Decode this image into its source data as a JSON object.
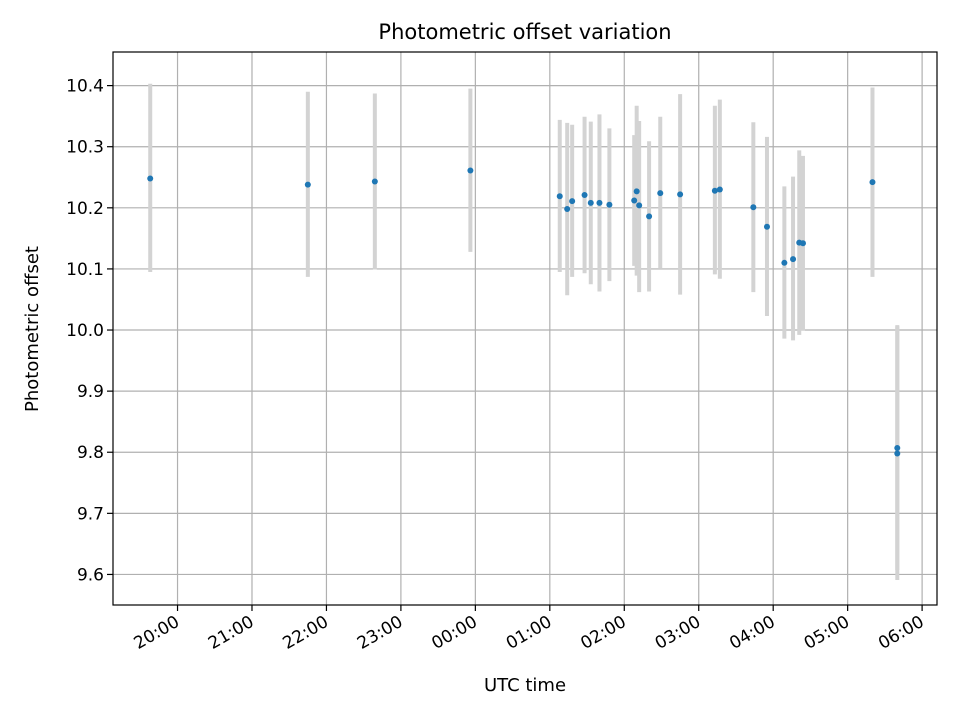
{
  "chart_data": {
    "type": "scatter",
    "title": "Photometric offset variation",
    "xlabel": "UTC time",
    "ylabel": "Photometric offset",
    "x_time_range": [
      "19:08",
      "06:12"
    ],
    "ylim": [
      9.55,
      10.455
    ],
    "x_ticks": [
      "20:00",
      "21:00",
      "22:00",
      "23:00",
      "00:00",
      "01:00",
      "02:00",
      "03:00",
      "04:00",
      "05:00",
      "06:00"
    ],
    "y_ticks": [
      "9.6",
      "9.7",
      "9.8",
      "9.9",
      "10.0",
      "10.1",
      "10.2",
      "10.3",
      "10.4"
    ],
    "grid": true,
    "marker_color": "#1f77b4",
    "errorbar_color": "#d3d3d3",
    "series": [
      {
        "points": [
          {
            "time": "19:38",
            "y": 10.248,
            "err_lo": 10.095,
            "err_hi": 10.403
          },
          {
            "time": "21:45",
            "y": 10.238,
            "err_lo": 10.087,
            "err_hi": 10.39
          },
          {
            "time": "22:39",
            "y": 10.243,
            "err_lo": 10.099,
            "err_hi": 10.387
          },
          {
            "time": "23:56",
            "y": 10.261,
            "err_lo": 10.128,
            "err_hi": 10.395
          },
          {
            "time": "01:08",
            "y": 10.219,
            "err_lo": 10.095,
            "err_hi": 10.344
          },
          {
            "time": "01:14",
            "y": 10.198,
            "err_lo": 10.057,
            "err_hi": 10.339
          },
          {
            "time": "01:18",
            "y": 10.211,
            "err_lo": 10.087,
            "err_hi": 10.336
          },
          {
            "time": "01:28",
            "y": 10.221,
            "err_lo": 10.093,
            "err_hi": 10.349
          },
          {
            "time": "01:33",
            "y": 10.208,
            "err_lo": 10.075,
            "err_hi": 10.341
          },
          {
            "time": "01:40",
            "y": 10.208,
            "err_lo": 10.063,
            "err_hi": 10.353
          },
          {
            "time": "01:48",
            "y": 10.205,
            "err_lo": 10.08,
            "err_hi": 10.33
          },
          {
            "time": "02:08",
            "y": 10.212,
            "err_lo": 10.105,
            "err_hi": 10.319
          },
          {
            "time": "02:10",
            "y": 10.227,
            "err_lo": 10.089,
            "err_hi": 10.367
          },
          {
            "time": "02:12",
            "y": 10.204,
            "err_lo": 10.062,
            "err_hi": 10.342
          },
          {
            "time": "02:20",
            "y": 10.186,
            "err_lo": 10.063,
            "err_hi": 10.309
          },
          {
            "time": "02:29",
            "y": 10.224,
            "err_lo": 10.1,
            "err_hi": 10.349
          },
          {
            "time": "02:45",
            "y": 10.222,
            "err_lo": 10.058,
            "err_hi": 10.386
          },
          {
            "time": "03:13",
            "y": 10.228,
            "err_lo": 10.091,
            "err_hi": 10.367
          },
          {
            "time": "03:17",
            "y": 10.23,
            "err_lo": 10.084,
            "err_hi": 10.377
          },
          {
            "time": "03:44",
            "y": 10.201,
            "err_lo": 10.062,
            "err_hi": 10.34
          },
          {
            "time": "03:55",
            "y": 10.169,
            "err_lo": 10.023,
            "err_hi": 10.316
          },
          {
            "time": "04:09",
            "y": 10.11,
            "err_lo": 9.986,
            "err_hi": 10.235
          },
          {
            "time": "04:16",
            "y": 10.116,
            "err_lo": 9.983,
            "err_hi": 10.251
          },
          {
            "time": "04:21",
            "y": 10.143,
            "err_lo": 9.992,
            "err_hi": 10.294
          },
          {
            "time": "04:24",
            "y": 10.142,
            "err_lo": 9.999,
            "err_hi": 10.285
          },
          {
            "time": "05:20",
            "y": 10.242,
            "err_lo": 10.087,
            "err_hi": 10.397
          },
          {
            "time": "05:40",
            "y": 9.807,
            "err_lo": 9.607,
            "err_hi": 10.008
          },
          {
            "time": "05:40",
            "y": 9.798,
            "err_lo": 9.591,
            "err_hi": 10.006
          }
        ]
      }
    ]
  }
}
